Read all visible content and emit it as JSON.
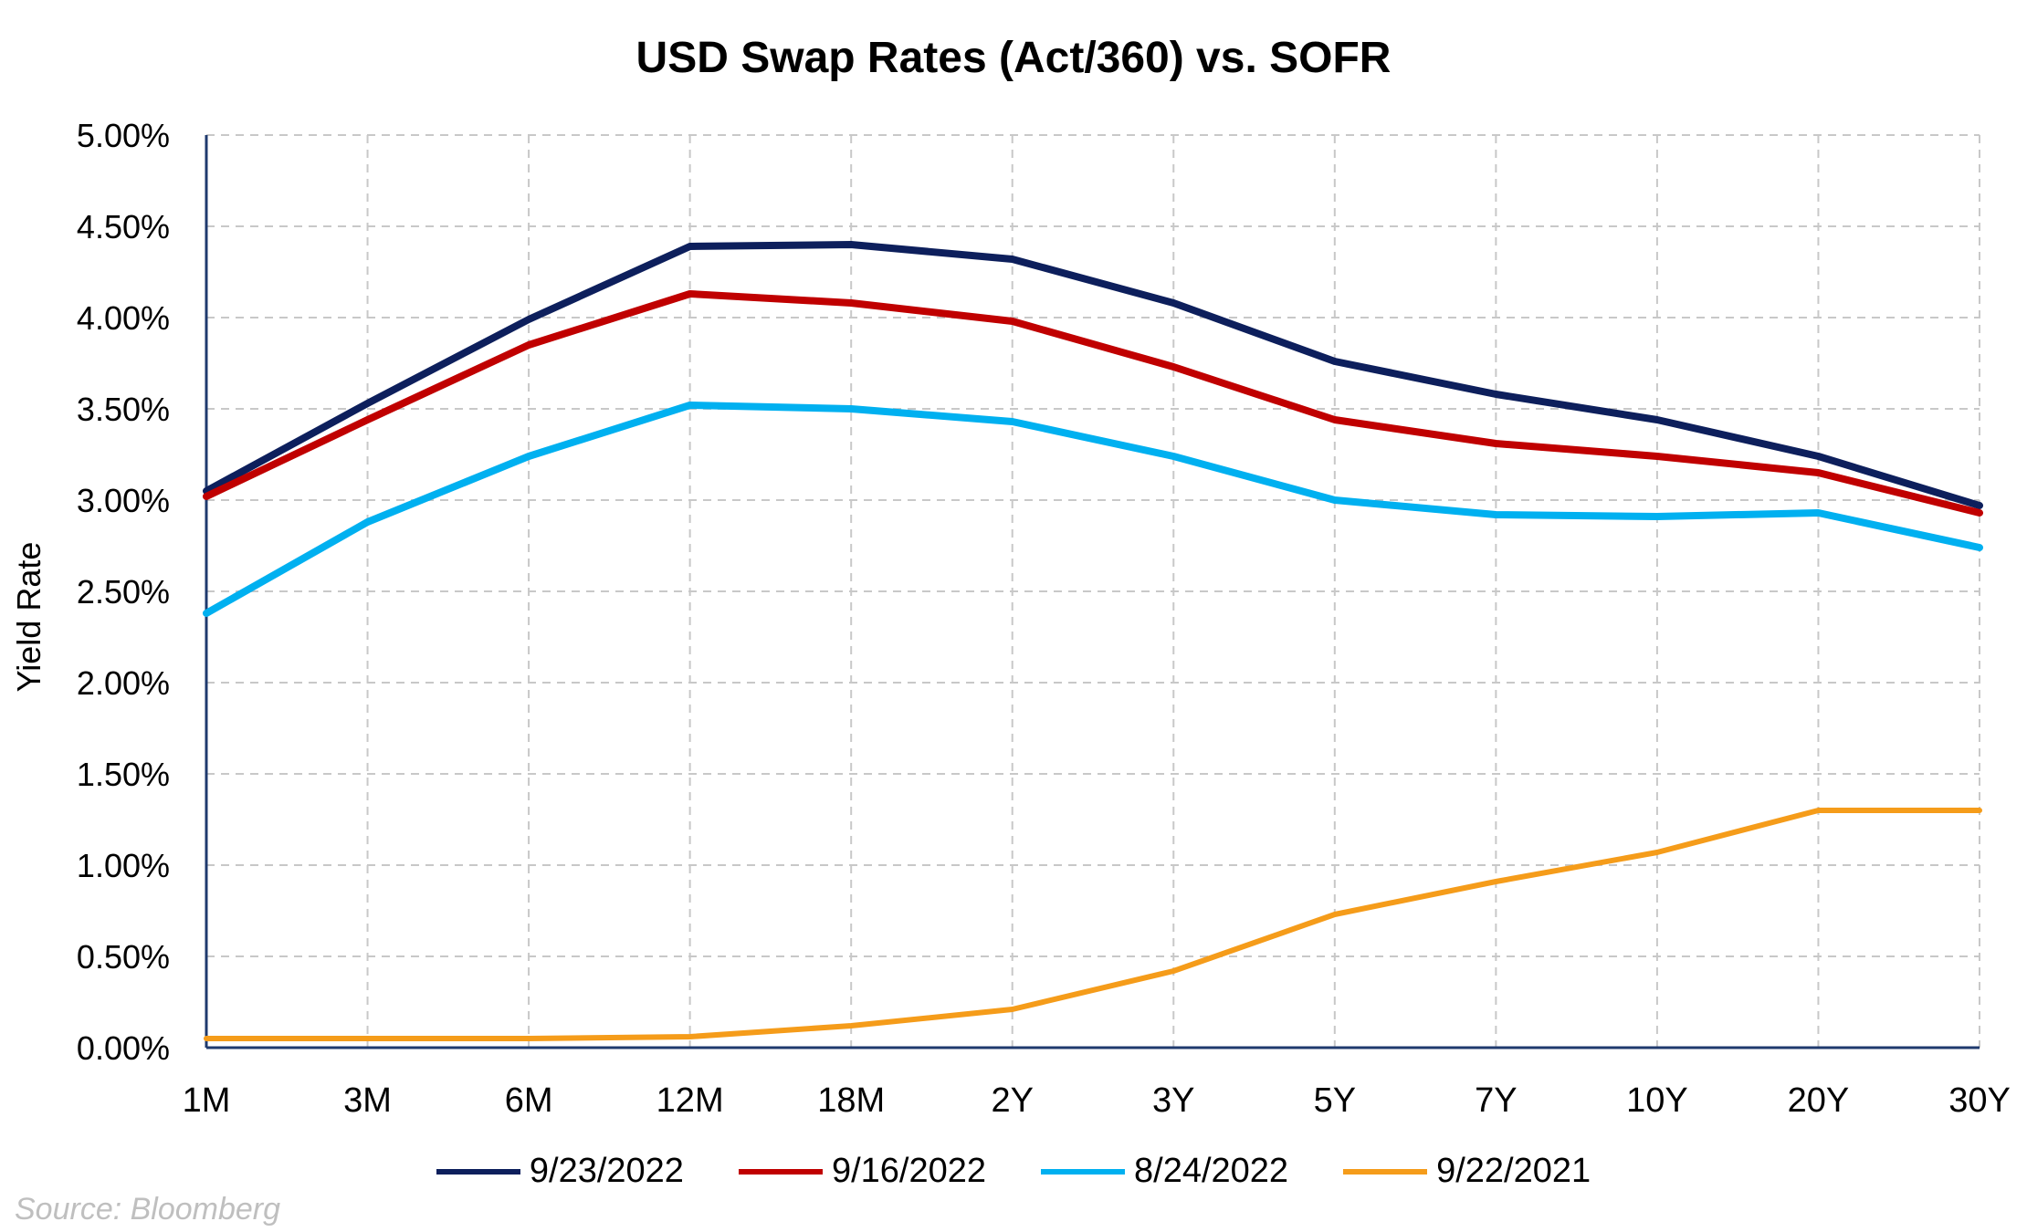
{
  "chart_data": {
    "type": "line",
    "title": "USD Swap Rates (Act/360) vs. SOFR",
    "ylabel": "Yield Rate",
    "xlabel": "",
    "categories": [
      "1M",
      "3M",
      "6M",
      "12M",
      "18M",
      "2Y",
      "3Y",
      "5Y",
      "7Y",
      "10Y",
      "20Y",
      "30Y"
    ],
    "ylim": [
      0,
      5
    ],
    "yticks": [
      "0.00%",
      "0.50%",
      "1.00%",
      "1.50%",
      "2.00%",
      "2.50%",
      "3.00%",
      "3.50%",
      "4.00%",
      "4.50%",
      "5.00%"
    ],
    "grid": true,
    "legend_position": "bottom",
    "series": [
      {
        "name": "9/23/2022",
        "color": "#0d1f5c",
        "values": [
          3.05,
          3.53,
          3.99,
          4.39,
          4.4,
          4.32,
          4.08,
          3.76,
          3.58,
          3.44,
          3.24,
          2.97
        ]
      },
      {
        "name": "9/16/2022",
        "color": "#c00000",
        "values": [
          3.02,
          3.44,
          3.85,
          4.13,
          4.08,
          3.98,
          3.73,
          3.44,
          3.31,
          3.24,
          3.15,
          2.93
        ]
      },
      {
        "name": "8/24/2022",
        "color": "#00b0f0",
        "values": [
          2.38,
          2.88,
          3.24,
          3.52,
          3.5,
          3.43,
          3.24,
          3.0,
          2.92,
          2.91,
          2.93,
          2.74
        ]
      },
      {
        "name": "9/22/2021",
        "color": "#f59c1a",
        "values": [
          0.05,
          0.05,
          0.05,
          0.06,
          0.12,
          0.21,
          0.42,
          0.73,
          0.91,
          1.07,
          1.3,
          1.3
        ]
      }
    ]
  },
  "source": "Source: Bloomberg"
}
